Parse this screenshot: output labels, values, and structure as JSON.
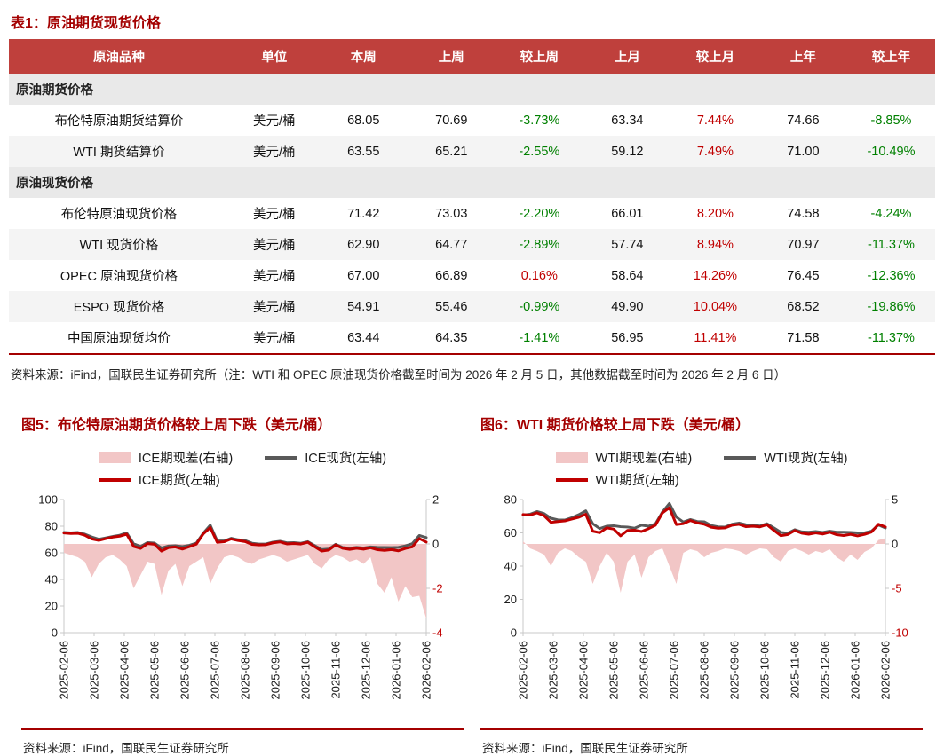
{
  "page": {
    "table_title": "表1：原油期货现货价格",
    "table_note": "资料来源：iFind，国联民生证券研究所（注：WTI 和 OPEC 原油现货价格截至时间为 2026 年 2 月 5 日，其他数据截至时间为 2026 年 2 月 6 日）"
  },
  "colors": {
    "title_red": "#a40000",
    "table_header_bg": "#bf403c",
    "positive_red": "#c00000",
    "negative_green": "#008000",
    "line_red": "#c00000",
    "line_gray": "#595959",
    "area_pink": "#f2c6c6",
    "section_row_bg": "#e9e9e9"
  },
  "table": {
    "headers": [
      "原油品种",
      "单位",
      "本周",
      "上周",
      "较上周",
      "上月",
      "较上月",
      "上年",
      "较上年"
    ],
    "sections": [
      {
        "label": "原油期货价格",
        "rows": [
          [
            "布伦特原油期货结算价",
            "美元/桶",
            "68.05",
            "70.69",
            "-3.73%",
            "63.34",
            "7.44%",
            "74.66",
            "-8.85%"
          ],
          [
            "WTI 期货结算价",
            "美元/桶",
            "63.55",
            "65.21",
            "-2.55%",
            "59.12",
            "7.49%",
            "71.00",
            "-10.49%"
          ]
        ]
      },
      {
        "label": "原油现货价格",
        "rows": [
          [
            "布伦特原油现货价格",
            "美元/桶",
            "71.42",
            "73.03",
            "-2.20%",
            "66.01",
            "8.20%",
            "74.58",
            "-4.24%"
          ],
          [
            "WTI 现货价格",
            "美元/桶",
            "62.90",
            "64.77",
            "-2.89%",
            "57.74",
            "8.94%",
            "70.97",
            "-11.37%"
          ],
          [
            "OPEC 原油现货价格",
            "美元/桶",
            "67.00",
            "66.89",
            "0.16%",
            "58.64",
            "14.26%",
            "76.45",
            "-12.36%"
          ],
          [
            "ESPO 现货价格",
            "美元/桶",
            "54.91",
            "55.46",
            "-0.99%",
            "49.90",
            "10.04%",
            "68.52",
            "-19.86%"
          ],
          [
            "中国原油现货均价",
            "美元/桶",
            "63.44",
            "64.35",
            "-1.41%",
            "56.95",
            "11.41%",
            "71.58",
            "-11.37%"
          ]
        ]
      }
    ]
  },
  "chart_data": [
    {
      "type": "line",
      "title": "图5：布伦特原油期货价格较上周下跌（美元/桶）",
      "source": "资料来源：iFind，国联民生证券研究所",
      "left_axis": {
        "min": 0,
        "max": 100,
        "ticks": [
          100,
          80,
          60,
          40,
          20,
          0
        ]
      },
      "right_axis": {
        "min": -4,
        "max": 2,
        "ticks": [
          2,
          0,
          -2,
          -4
        ]
      },
      "x_ticks": [
        "2025-02-06",
        "2025-03-06",
        "2025-04-06",
        "2025-05-06",
        "2025-06-06",
        "2025-07-06",
        "2025-08-06",
        "2025-09-06",
        "2025-10-06",
        "2025-11-06",
        "2025-12-06",
        "2026-01-06",
        "2026-02-06"
      ],
      "series": [
        {
          "name": "ICE期现差(右轴)",
          "type": "area",
          "axis": "right",
          "color": "#f2c6c6",
          "values": [
            -0.4,
            -0.5,
            -0.6,
            -0.8,
            -1.5,
            -0.9,
            -0.6,
            -0.5,
            -0.7,
            -1.0,
            -2.0,
            -1.4,
            -0.8,
            -0.9,
            -2.3,
            -1.2,
            -0.9,
            -1.9,
            -1.0,
            -0.8,
            -0.6,
            -1.8,
            -1.1,
            -0.6,
            -0.5,
            -0.6,
            -0.8,
            -0.9,
            -0.7,
            -0.6,
            -0.5,
            -0.6,
            -0.8,
            -0.7,
            -0.6,
            -0.5,
            -0.9,
            -1.1,
            -0.7,
            -0.5,
            -0.6,
            -0.8,
            -0.7,
            -0.9,
            -0.6,
            -1.8,
            -2.2,
            -1.5,
            -2.6,
            -1.9,
            -2.4,
            -2.34,
            -3.37
          ]
        },
        {
          "name": "ICE现货(左轴)",
          "type": "line",
          "axis": "left",
          "color": "#595959",
          "width": 3,
          "values": [
            75.3,
            75.0,
            75.3,
            74.0,
            71.9,
            70.2,
            71.2,
            72.3,
            73.2,
            75.0,
            66.8,
            64.7,
            67.7,
            67.3,
            63.6,
            65.1,
            65.3,
            64.7,
            65.6,
            67.3,
            74.8,
            80.8,
            68.9,
            68.9,
            70.9,
            69.8,
            69.2,
            67.2,
            66.6,
            66.7,
            68.0,
            68.7,
            67.5,
            67.7,
            67.2,
            68.4,
            65.4,
            62.4,
            62.8,
            66.4,
            64.0,
            63.4,
            64.1,
            63.6,
            64.4,
            64.1,
            64.0,
            63.9,
            64.1,
            65.2,
            66.9,
            73.03,
            71.42
          ]
        },
        {
          "name": "ICE期货(左轴)",
          "type": "line",
          "axis": "left",
          "color": "#c00000",
          "width": 3,
          "values": [
            74.9,
            74.5,
            74.7,
            73.2,
            70.4,
            69.3,
            70.6,
            71.8,
            72.5,
            74.0,
            64.8,
            63.3,
            66.9,
            66.4,
            61.3,
            63.9,
            64.4,
            62.8,
            64.6,
            66.5,
            74.2,
            79.0,
            67.8,
            68.3,
            70.4,
            69.2,
            68.4,
            66.3,
            65.9,
            66.1,
            67.5,
            68.1,
            66.7,
            67.0,
            66.6,
            67.9,
            64.5,
            61.3,
            62.1,
            65.9,
            63.4,
            62.6,
            63.4,
            62.7,
            63.8,
            62.3,
            61.8,
            62.4,
            61.5,
            63.3,
            64.5,
            70.69,
            68.05
          ]
        }
      ]
    },
    {
      "type": "line",
      "title": "图6：WTI 期货价格较上周下跌（美元/桶）",
      "source": "资料来源：iFind，国联民生证券研究所",
      "left_axis": {
        "min": 0,
        "max": 80,
        "ticks": [
          80,
          60,
          40,
          20,
          0
        ]
      },
      "right_axis": {
        "min": -10,
        "max": 5,
        "ticks": [
          5,
          0,
          -5,
          -10
        ]
      },
      "x_ticks": [
        "2025-02-06",
        "2025-03-06",
        "2025-04-06",
        "2025-05-06",
        "2025-06-06",
        "2025-07-06",
        "2025-08-06",
        "2025-09-06",
        "2025-10-06",
        "2025-11-06",
        "2025-12-06",
        "2026-01-06",
        "2026-02-06"
      ],
      "series": [
        {
          "name": "WTI期现差(右轴)",
          "type": "area",
          "axis": "right",
          "color": "#f2c6c6",
          "values": [
            0.3,
            -0.5,
            -0.8,
            -1.2,
            -2.5,
            -1.0,
            -0.5,
            -0.8,
            -1.5,
            -2.0,
            -4.5,
            -2.5,
            -1.0,
            -2.0,
            -5.5,
            -2.0,
            -1.2,
            -3.8,
            -1.5,
            -0.8,
            -0.5,
            -2.5,
            -4.5,
            -1.0,
            -0.6,
            -0.8,
            -1.5,
            -1.0,
            -0.8,
            -0.5,
            -0.6,
            -0.8,
            -1.2,
            -0.8,
            -0.5,
            -0.6,
            -1.5,
            -2.0,
            -0.8,
            -0.5,
            -0.8,
            -1.2,
            -0.8,
            -1.0,
            -0.6,
            -1.5,
            -2.0,
            -1.2,
            -1.8,
            -0.9,
            -0.5,
            0.44,
            0.65
          ]
        },
        {
          "name": "WTI现货(左轴)",
          "type": "line",
          "axis": "left",
          "color": "#595959",
          "width": 3,
          "values": [
            70.7,
            71.2,
            72.8,
            71.6,
            68.8,
            67.8,
            67.7,
            69.1,
            70.9,
            73.2,
            65.5,
            62.6,
            64.0,
            64.3,
            63.7,
            63.5,
            62.8,
            64.6,
            64.0,
            65.4,
            72.5,
            77.6,
            69.5,
            66.5,
            68.0,
            66.8,
            66.7,
            64.4,
            63.6,
            63.5,
            65.2,
            65.9,
            64.9,
            64.8,
            64.1,
            65.5,
            63.0,
            60.3,
            59.8,
            61.9,
            60.6,
            60.4,
            60.8,
            60.3,
            61.0,
            60.4,
            60.4,
            60.3,
            60.0,
            60.0,
            61.0,
            64.77,
            62.9
          ]
        },
        {
          "name": "WTI期货(左轴)",
          "type": "line",
          "axis": "left",
          "color": "#c00000",
          "width": 3,
          "values": [
            71.0,
            70.7,
            72.0,
            70.4,
            66.3,
            66.8,
            67.2,
            68.3,
            69.4,
            71.2,
            61.0,
            60.1,
            63.0,
            62.3,
            58.2,
            61.5,
            61.6,
            60.8,
            62.5,
            64.6,
            72.0,
            75.1,
            65.0,
            65.5,
            67.4,
            66.0,
            65.2,
            63.4,
            62.8,
            63.0,
            64.6,
            65.1,
            63.7,
            64.0,
            63.6,
            64.9,
            61.5,
            58.3,
            59.0,
            61.4,
            59.8,
            59.2,
            60.0,
            59.3,
            60.4,
            58.9,
            58.4,
            59.1,
            58.2,
            59.1,
            60.5,
            65.21,
            63.55
          ]
        }
      ]
    }
  ]
}
